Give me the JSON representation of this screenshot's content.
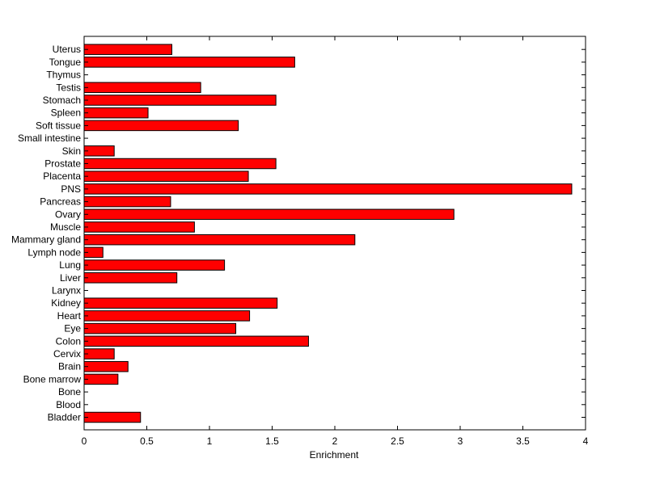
{
  "chart_data": {
    "type": "bar",
    "orientation": "horizontal",
    "categories": [
      "Bladder",
      "Blood",
      "Bone",
      "Bone marrow",
      "Brain",
      "Cervix",
      "Colon",
      "Eye",
      "Heart",
      "Kidney",
      "Larynx",
      "Liver",
      "Lung",
      "Lymph node",
      "Mammary gland",
      "Muscle",
      "Ovary",
      "Pancreas",
      "PNS",
      "Placenta",
      "Prostate",
      "Skin",
      "Small intestine",
      "Soft tissue",
      "Spleen",
      "Stomach",
      "Testis",
      "Thymus",
      "Tongue",
      "Uterus"
    ],
    "values": [
      0.45,
      0,
      0,
      0.27,
      0.35,
      0.24,
      1.79,
      1.21,
      1.32,
      1.54,
      0,
      0.74,
      1.12,
      0.15,
      2.16,
      0.88,
      2.95,
      0.69,
      3.89,
      1.31,
      1.53,
      0.24,
      0,
      1.23,
      0.51,
      1.53,
      0.93,
      0,
      1.68,
      0.7
    ],
    "xlabel": "Enrichment",
    "ylabel": "",
    "title": "",
    "xlim": [
      0,
      4
    ],
    "xticks": [
      "0",
      "0.5",
      "1",
      "1.5",
      "2",
      "2.5",
      "3",
      "3.5",
      "4"
    ],
    "grid": false,
    "bar_color": "#ff0000",
    "edge_color": "#000000"
  }
}
